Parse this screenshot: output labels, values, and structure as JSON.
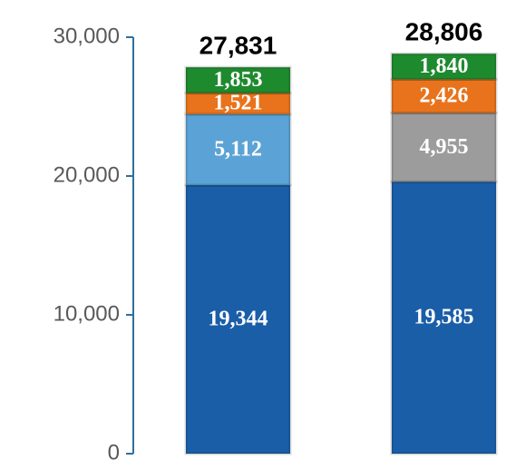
{
  "chart_data": {
    "type": "stacked-bar",
    "categories": [
      null,
      null
    ],
    "series": [
      {
        "colors": [
          "#1a5ea8",
          "#1a5ea8"
        ],
        "values": [
          19344,
          19585
        ],
        "value_labels": [
          "19,344",
          "19,585"
        ]
      },
      {
        "colors": [
          "#5ba3d6",
          "#9c9c9c"
        ],
        "values": [
          5112,
          4955
        ],
        "value_labels": [
          "5,112",
          "4,955"
        ]
      },
      {
        "colors": [
          "#e8731c",
          "#e8731c"
        ],
        "values": [
          1521,
          2426
        ],
        "value_labels": [
          "1,521",
          "2,426"
        ]
      },
      {
        "colors": [
          "#1e8a2e",
          "#1e8a2e"
        ],
        "values": [
          1853,
          1840
        ],
        "value_labels": [
          "1,853",
          "1,840"
        ]
      }
    ],
    "totals": [
      27831,
      28806
    ],
    "total_labels": [
      "27,831",
      "28,806"
    ],
    "ylim": [
      0,
      30000
    ],
    "yticks": [
      {
        "value": 0,
        "label": "0"
      },
      {
        "value": 10000,
        "label": "10,000"
      },
      {
        "value": 20000,
        "label": "20,000"
      },
      {
        "value": 30000,
        "label": "30,000"
      }
    ],
    "axis_color": "#2e6f9e"
  }
}
